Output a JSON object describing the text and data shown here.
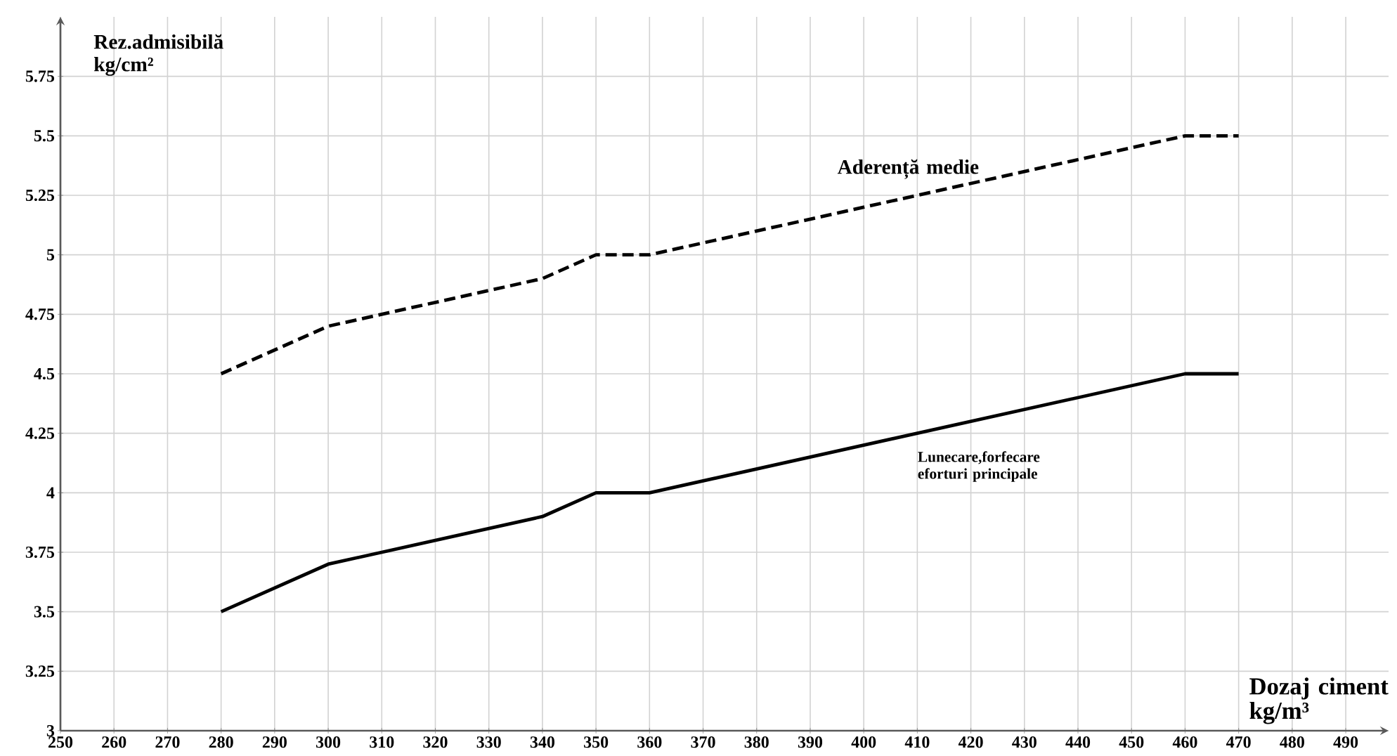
{
  "chart_data": {
    "type": "line",
    "xlabel": "Dozaj ciment kg/m³",
    "ylabel": "Rez.admisibilă kg/cm²",
    "x": [
      280,
      300,
      340,
      350,
      360,
      460,
      470
    ],
    "series": [
      {
        "name": "Aderență medie",
        "color": "#000000",
        "line_style": "dashed",
        "values": [
          4.5,
          4.7,
          4.9,
          5.0,
          5.0,
          5.5,
          5.5
        ]
      },
      {
        "name": "Lunecare,forfecare eforturi principale",
        "color": "#000000",
        "line_style": "solid",
        "values": [
          3.5,
          3.7,
          3.9,
          4.0,
          4.0,
          4.5,
          4.5
        ]
      }
    ],
    "xlim": [
      250,
      498
    ],
    "ylim": [
      3,
      6
    ],
    "xticks": [
      250,
      260,
      270,
      280,
      290,
      300,
      310,
      320,
      330,
      340,
      350,
      360,
      370,
      380,
      390,
      400,
      410,
      420,
      430,
      440,
      450,
      460,
      470,
      480,
      490
    ],
    "yticks": [
      3,
      3.25,
      3.5,
      3.75,
      4,
      4.25,
      4.5,
      4.75,
      5,
      5.25,
      5.5,
      5.75
    ],
    "grid": true
  }
}
